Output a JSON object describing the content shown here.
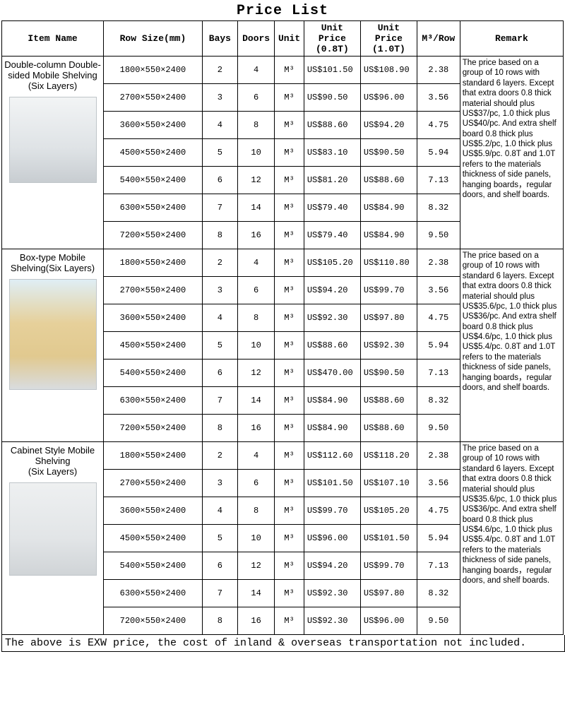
{
  "title": "Price List",
  "columns": [
    "Item Name",
    "Row Size(mm)",
    "Bays",
    "Doors",
    "Unit",
    "Unit Price (0.8T)",
    "Unit Price (1.0T)",
    "M³/Row",
    "Remark"
  ],
  "unit_symbol": "M³",
  "sections": [
    {
      "name": "Double-column Double-sided Mobile Shelving\n(Six Layers)",
      "image_placeholder": "p1",
      "rows": [
        {
          "size": "1800×550×2400",
          "bays": "2",
          "doors": "4",
          "p08": "US$101.50",
          "p10": "US$108.90",
          "m3": "2.38"
        },
        {
          "size": "2700×550×2400",
          "bays": "3",
          "doors": "6",
          "p08": "US$90.50",
          "p10": "US$96.00",
          "m3": "3.56"
        },
        {
          "size": "3600×550×2400",
          "bays": "4",
          "doors": "8",
          "p08": "US$88.60",
          "p10": "US$94.20",
          "m3": "4.75"
        },
        {
          "size": "4500×550×2400",
          "bays": "5",
          "doors": "10",
          "p08": "US$83.10",
          "p10": "US$90.50",
          "m3": "5.94"
        },
        {
          "size": "5400×550×2400",
          "bays": "6",
          "doors": "12",
          "p08": "US$81.20",
          "p10": "US$88.60",
          "m3": "7.13"
        },
        {
          "size": "6300×550×2400",
          "bays": "7",
          "doors": "14",
          "p08": "US$79.40",
          "p10": "US$84.90",
          "m3": "8.32"
        },
        {
          "size": "7200×550×2400",
          "bays": "8",
          "doors": "16",
          "p08": "US$79.40",
          "p10": "US$84.90",
          "m3": "9.50"
        }
      ],
      "remark": "The price based on a group of 10 rows with standard 6 layers. Except that extra doors 0.8 thick material should plus US$37/pc, 1.0 thick plus US$40/pc. And extra shelf board 0.8 thick plus US$5.2/pc, 1.0 thick plus US$5.9/pc. 0.8T and 1.0T refers to the materials thickness of side panels, hanging boards，regular doors, and shelf boards."
    },
    {
      "name": "Box-type Mobile Shelving(Six Layers)",
      "image_placeholder": "p2",
      "rows": [
        {
          "size": "1800×550×2400",
          "bays": "2",
          "doors": "4",
          "p08": "US$105.20",
          "p10": "US$110.80",
          "m3": "2.38"
        },
        {
          "size": "2700×550×2400",
          "bays": "3",
          "doors": "6",
          "p08": "US$94.20",
          "p10": "US$99.70",
          "m3": "3.56"
        },
        {
          "size": "3600×550×2400",
          "bays": "4",
          "doors": "8",
          "p08": "US$92.30",
          "p10": "US$97.80",
          "m3": "4.75"
        },
        {
          "size": "4500×550×2400",
          "bays": "5",
          "doors": "10",
          "p08": "US$88.60",
          "p10": "US$92.30",
          "m3": "5.94"
        },
        {
          "size": "5400×550×2400",
          "bays": "6",
          "doors": "12",
          "p08": "US$470.00",
          "p10": "US$90.50",
          "m3": "7.13"
        },
        {
          "size": "6300×550×2400",
          "bays": "7",
          "doors": "14",
          "p08": "US$84.90",
          "p10": "US$88.60",
          "m3": "8.32"
        },
        {
          "size": "7200×550×2400",
          "bays": "8",
          "doors": "16",
          "p08": "US$84.90",
          "p10": "US$88.60",
          "m3": "9.50"
        }
      ],
      "remark": "The price based on a group of 10 rows with standard 6 layers. Except that extra doors 0.8 thick material should plus US$35.6/pc, 1.0 thick plus US$36/pc. And extra shelf board 0.8 thick plus US$4.6/pc, 1.0 thick plus US$5.4/pc. 0.8T and 1.0T refers to the materials thickness of side panels, hanging boards，regular doors, and shelf boards."
    },
    {
      "name": "Cabinet Style Mobile Shelving\n(Six Layers)",
      "image_placeholder": "p3",
      "rows": [
        {
          "size": "1800×550×2400",
          "bays": "2",
          "doors": "4",
          "p08": "US$112.60",
          "p10": "US$118.20",
          "m3": "2.38"
        },
        {
          "size": "2700×550×2400",
          "bays": "3",
          "doors": "6",
          "p08": "US$101.50",
          "p10": "US$107.10",
          "m3": "3.56"
        },
        {
          "size": "3600×550×2400",
          "bays": "4",
          "doors": "8",
          "p08": "US$99.70",
          "p10": "US$105.20",
          "m3": "4.75"
        },
        {
          "size": "4500×550×2400",
          "bays": "5",
          "doors": "10",
          "p08": "US$96.00",
          "p10": "US$101.50",
          "m3": "5.94"
        },
        {
          "size": "5400×550×2400",
          "bays": "6",
          "doors": "12",
          "p08": "US$94.20",
          "p10": "US$99.70",
          "m3": "7.13"
        },
        {
          "size": "6300×550×2400",
          "bays": "7",
          "doors": "14",
          "p08": "US$92.30",
          "p10": "US$97.80",
          "m3": "8.32"
        },
        {
          "size": "7200×550×2400",
          "bays": "8",
          "doors": "16",
          "p08": "US$92.30",
          "p10": "US$96.00",
          "m3": "9.50"
        }
      ],
      "remark": "The price based on a group of 10 rows with standard 6 layers. Except that extra doors 0.8 thick material should plus US$35.6/pc, 1.0 thick plus US$36/pc. And extra shelf board 0.8 thick plus US$4.6/pc, 1.0 thick plus US$5.4/pc. 0.8T and 1.0T refers to the materials thickness of side panels, hanging boards，regular doors, and shelf boards."
    }
  ],
  "footnote": "The above is EXW price, the cost of inland & overseas transportation not included."
}
